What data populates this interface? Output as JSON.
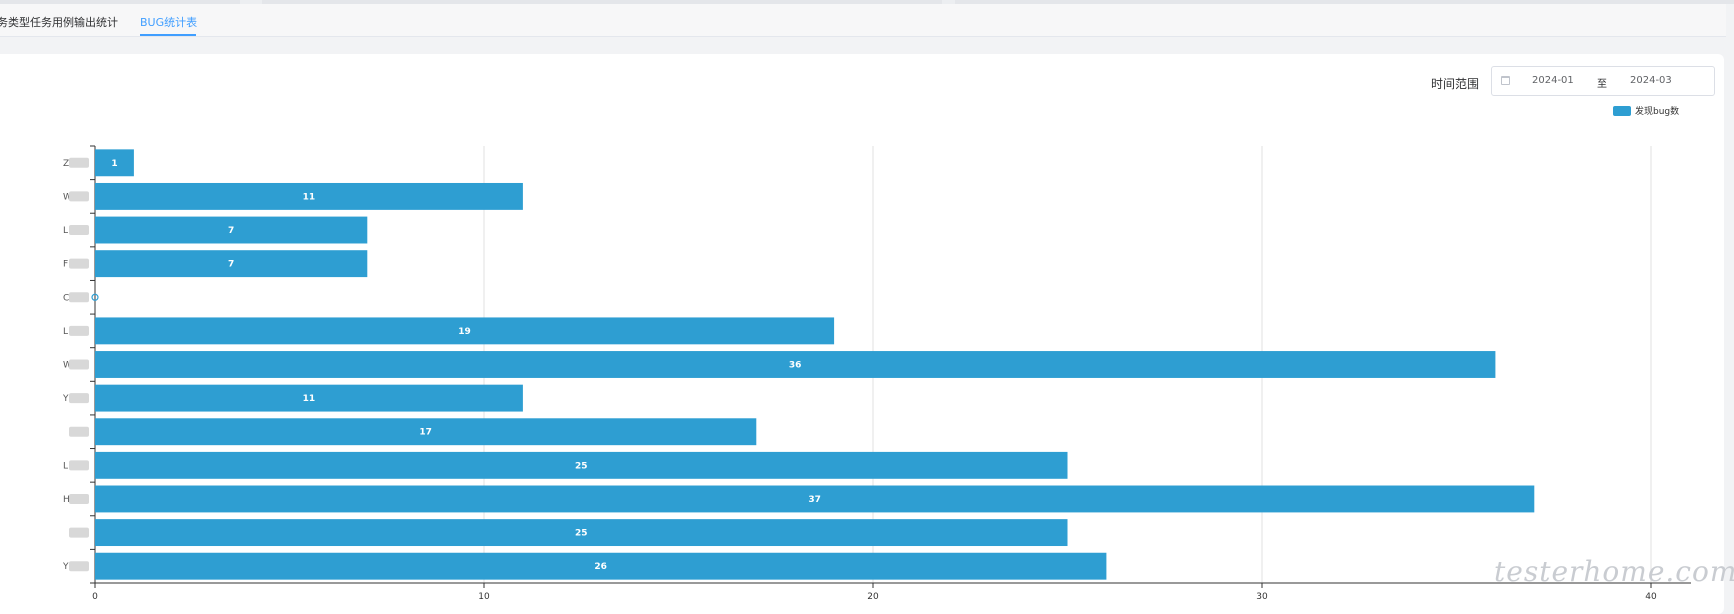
{
  "tabs": [
    {
      "label": "务类型任务用例输出统计",
      "active": false
    },
    {
      "label": "BUG统计表",
      "active": true
    }
  ],
  "filter": {
    "label": "时间范围",
    "start": "2024-01",
    "separator": "至",
    "end": "2024-03"
  },
  "watermark": "testerhome.com",
  "colors": {
    "bar": "#2e9ed2",
    "accent": "#409eff"
  },
  "chart_data": {
    "type": "bar",
    "orientation": "horizontal",
    "title": "",
    "xlabel": "",
    "ylabel": "",
    "categories": [
      "Z",
      "W",
      "L",
      "F",
      "C",
      "L",
      "W",
      "Y",
      "",
      "L",
      "H",
      "",
      "Y"
    ],
    "series": [
      {
        "name": "发现bug数",
        "values": [
          1,
          11,
          7,
          7,
          0,
          19,
          36,
          11,
          17,
          25,
          37,
          25,
          26
        ]
      }
    ],
    "xlim": [
      0,
      40
    ],
    "xticks": [
      0,
      10,
      20,
      30,
      40
    ],
    "grid": true,
    "legend": "top-right",
    "data_labels": true
  }
}
